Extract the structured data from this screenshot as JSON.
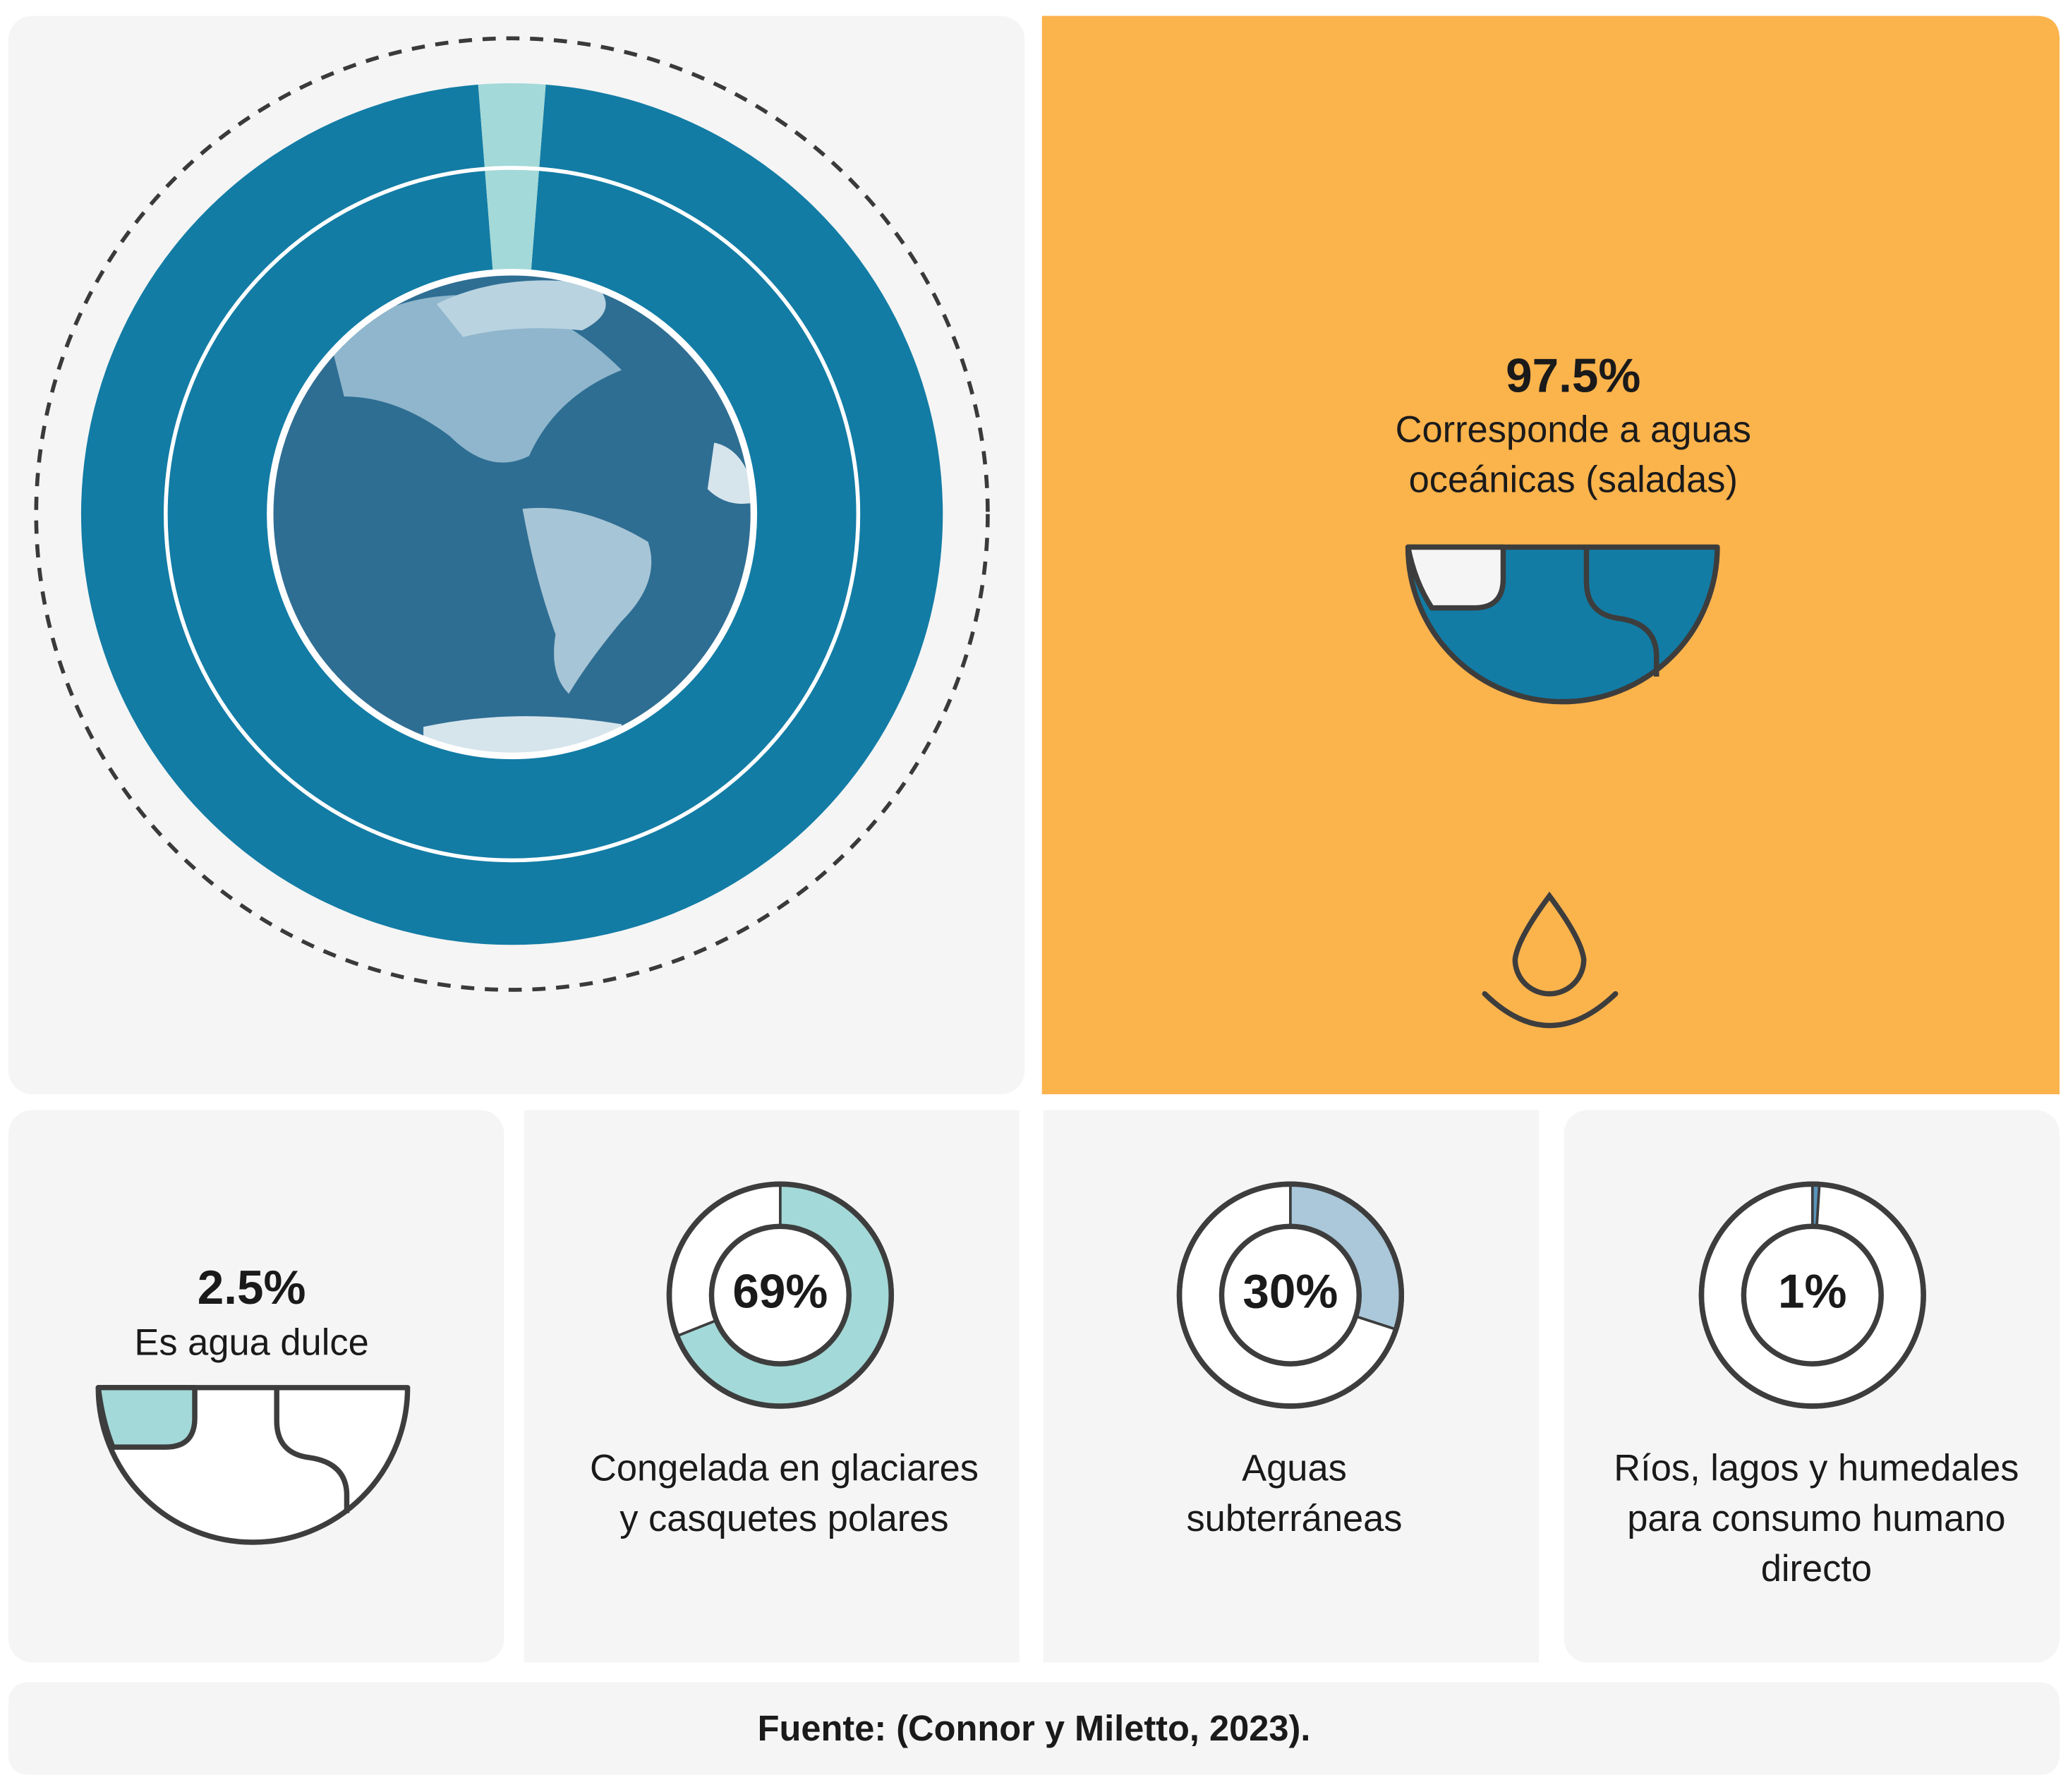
{
  "chart_data": [
    {
      "type": "donut",
      "values": [
        97.5,
        2.5
      ],
      "value_labels": [
        "97.5%",
        "2.5%"
      ],
      "labels": [
        [
          "Corresponde a aguas",
          "oceánicas (saladas)"
        ],
        [
          "Es agua dulce"
        ]
      ],
      "colors": [
        "#127ca5",
        "#a3d9d8"
      ]
    },
    {
      "type": "ring",
      "values": [
        69
      ],
      "value_labels": [
        "69%"
      ],
      "label": [
        "Congelada en glaciares",
        "y casquetes polares"
      ],
      "color": "#a3d9d8"
    },
    {
      "type": "ring",
      "values": [
        30
      ],
      "value_labels": [
        "30%"
      ],
      "label": [
        "Aguas",
        "subterráneas"
      ],
      "color": "#aac8da"
    },
    {
      "type": "ring",
      "values": [
        1
      ],
      "value_labels": [
        "1%"
      ],
      "label": [
        "Ríos, lagos y humedales",
        "para consumo humano",
        "directo"
      ],
      "color": "#5a93ba"
    }
  ],
  "source": "Fuente:  (Connor y Miletto, 2023)."
}
